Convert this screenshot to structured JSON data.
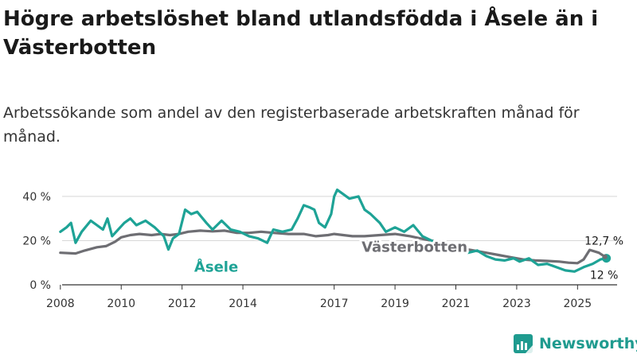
{
  "chart_data": {
    "type": "line",
    "title": "Högre arbetslöshet bland utlandsfödda i Åsele än i Västerbotten",
    "subtitle": "Arbetssökande som andel av den registerbaserade arbetskraften månad för månad.",
    "xlabel": "",
    "ylabel": "",
    "xlim": [
      2007.9,
      2026.3
    ],
    "ylim": [
      0,
      45
    ],
    "y_ticks": [
      0,
      20,
      40
    ],
    "y_tick_labels": [
      "0 %",
      "20 %",
      "40 %"
    ],
    "x_ticks": [
      2008,
      2010,
      2012,
      2014,
      2017,
      2019,
      2021,
      2023,
      2025
    ],
    "x_tick_labels": [
      "2008",
      "2010",
      "2012",
      "2014",
      "2017",
      "2019",
      "2021",
      "2023",
      "2025"
    ],
    "grid": true,
    "series": [
      {
        "name": "Västerbotten",
        "label": "Västerbotten",
        "color": "#6e6e73",
        "x": [
          2008.0,
          2008.5,
          2008.8,
          2009.2,
          2009.5,
          2009.8,
          2010.0,
          2010.3,
          2010.6,
          2011.0,
          2011.3,
          2011.6,
          2011.9,
          2012.2,
          2012.6,
          2013.0,
          2013.4,
          2013.8,
          2014.2,
          2014.6,
          2015.0,
          2015.5,
          2016.0,
          2016.4,
          2016.8,
          2017.0,
          2017.3,
          2017.6,
          2018.0,
          2018.5,
          2019.0,
          2019.5,
          2020.0,
          2020.4,
          2020.8,
          2021.2,
          2021.6,
          2022.0,
          2022.4,
          2022.8,
          2023.2,
          2023.6,
          2024.0,
          2024.4,
          2024.7,
          2025.0,
          2025.2,
          2025.4,
          2025.7,
          2025.9
        ],
        "values": [
          14.5,
          14.2,
          15.5,
          17,
          17.5,
          19.5,
          21.5,
          22.5,
          23,
          22.5,
          23,
          22.5,
          23,
          24,
          24.5,
          24.2,
          24.5,
          23.5,
          23.5,
          24,
          23.5,
          23,
          23,
          22,
          22.5,
          23,
          22.5,
          22,
          22,
          22.5,
          23,
          22,
          20.5,
          19.5,
          18.5,
          16.5,
          15.5,
          14.5,
          13.5,
          12.5,
          11.5,
          11,
          10.8,
          10.5,
          10,
          9.8,
          11.5,
          15.8,
          14.5,
          12.7
        ]
      },
      {
        "name": "Åsele",
        "label": "Åsele",
        "color": "#1ea396",
        "x": [
          2008.0,
          2008.2,
          2008.35,
          2008.5,
          2008.7,
          2009.0,
          2009.2,
          2009.4,
          2009.55,
          2009.7,
          2009.9,
          2010.1,
          2010.3,
          2010.5,
          2010.8,
          2011.1,
          2011.4,
          2011.55,
          2011.7,
          2011.9,
          2012.1,
          2012.3,
          2012.5,
          2012.8,
          2013.0,
          2013.3,
          2013.6,
          2013.9,
          2014.2,
          2014.5,
          2014.8,
          2015.0,
          2015.3,
          2015.6,
          2015.8,
          2016.0,
          2016.2,
          2016.35,
          2016.5,
          2016.7,
          2016.9,
          2017.0,
          2017.1,
          2017.3,
          2017.5,
          2017.8,
          2018.0,
          2018.2,
          2018.5,
          2018.7,
          2019.0,
          2019.3,
          2019.6,
          2019.9,
          2020.2,
          2020.5,
          2020.8,
          2021.1,
          2021.4,
          2021.7,
          2022.0,
          2022.3,
          2022.6,
          2022.9,
          2023.1,
          2023.4,
          2023.7,
          2024.0,
          2024.3,
          2024.6,
          2024.9,
          2025.2,
          2025.5,
          2025.75,
          2025.95
        ],
        "values": [
          24,
          26,
          28,
          19,
          24,
          29,
          27,
          25,
          30,
          22,
          25,
          28,
          30,
          27,
          29,
          26,
          22,
          16,
          21,
          23,
          34,
          32,
          33,
          28,
          25,
          29,
          25,
          24,
          22,
          21,
          19,
          25,
          24,
          25,
          30,
          36,
          35,
          34,
          28,
          26,
          32,
          40,
          43,
          41,
          39,
          40,
          34,
          32,
          28,
          24,
          26,
          24,
          27,
          22,
          20,
          18,
          16,
          16,
          14.5,
          15.5,
          13,
          11.5,
          11,
          12,
          10.5,
          12,
          9,
          9.5,
          8,
          6.5,
          6,
          8,
          9.5,
          11.5,
          12.0
        ]
      }
    ],
    "annotations": [
      {
        "text": "12,7 %",
        "series": "Västerbotten"
      },
      {
        "text": "12 %",
        "series": "Åsele"
      }
    ]
  },
  "brand": {
    "name": "Newsworthy"
  },
  "colors": {
    "vasterbotten": "#6e6e73",
    "asele": "#1ea396",
    "grid": "#d7d7d7",
    "axis": "#333333"
  }
}
